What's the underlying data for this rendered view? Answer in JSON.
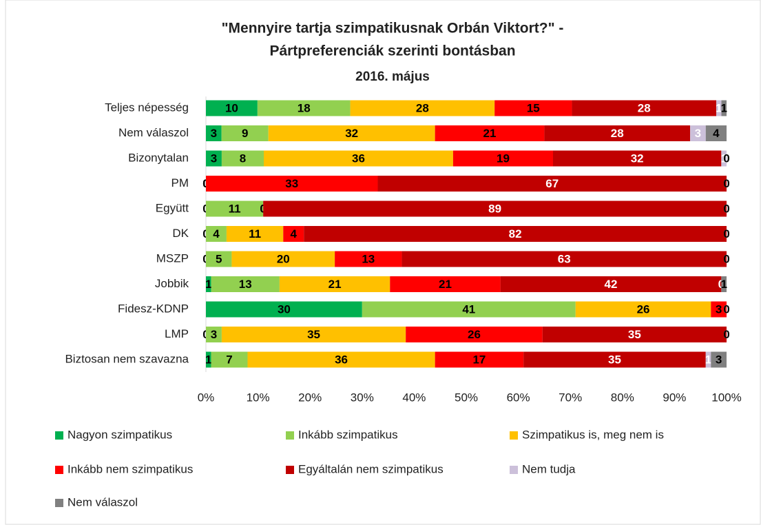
{
  "chart_data": {
    "type": "stacked_bar_100",
    "title": "\"Mennyire tartja szimpatikusnak Orbán Viktort?\" -",
    "title_line2": "Pártpreferenciák szerinti bontásban",
    "subtitle": "2016. május",
    "categories": [
      "Teljes népesség",
      "Nem válaszol",
      "Bizonytalan",
      "PM",
      "Együtt",
      "DK",
      "MSZP",
      "Jobbik",
      "Fidesz-KDNP",
      "LMP",
      "Biztosan nem szavazna"
    ],
    "series": [
      {
        "name": "Nagyon szimpatikus",
        "color": "#00b050",
        "values": [
          10,
          3,
          3,
          0,
          0,
          0,
          0,
          1,
          30,
          0,
          1
        ]
      },
      {
        "name": "Inkább szimpatikus",
        "color": "#92d050",
        "values": [
          18,
          9,
          8,
          0,
          11,
          4,
          5,
          13,
          41,
          3,
          7
        ]
      },
      {
        "name": "Szimpatikus is, meg nem is",
        "color": "#ffc000",
        "values": [
          28,
          32,
          36,
          0,
          0,
          11,
          20,
          21,
          26,
          35,
          36
        ]
      },
      {
        "name": "Inkább nem szimpatikus",
        "color": "#ff0000",
        "values": [
          15,
          21,
          19,
          33,
          0,
          4,
          13,
          21,
          3,
          26,
          17
        ]
      },
      {
        "name": "Egyáltalán nem szimpatikus",
        "color": "#c00000",
        "values": [
          28,
          28,
          32,
          67,
          89,
          82,
          63,
          42,
          0,
          35,
          35
        ]
      },
      {
        "name": "Nem tudja",
        "color": "#ccc0da",
        "values": [
          1,
          3,
          1,
          0,
          0,
          0,
          0,
          0,
          0,
          0,
          1
        ]
      },
      {
        "name": "Nem válaszol",
        "color": "#808080",
        "values": [
          1,
          4,
          0,
          0,
          0,
          0,
          0,
          1,
          0,
          0,
          3
        ]
      }
    ],
    "xlim": [
      0,
      100
    ],
    "xticks": [
      {
        "value": 0,
        "label": "0%"
      },
      {
        "value": 10,
        "label": "10%"
      },
      {
        "value": 20,
        "label": "20%"
      },
      {
        "value": 30,
        "label": "30%"
      },
      {
        "value": 40,
        "label": "40%"
      },
      {
        "value": 50,
        "label": "50%"
      },
      {
        "value": 60,
        "label": "60%"
      },
      {
        "value": 70,
        "label": "70%"
      },
      {
        "value": 80,
        "label": "80%"
      },
      {
        "value": 90,
        "label": "90%"
      },
      {
        "value": 100,
        "label": "100%"
      }
    ],
    "legend": "bottom"
  }
}
